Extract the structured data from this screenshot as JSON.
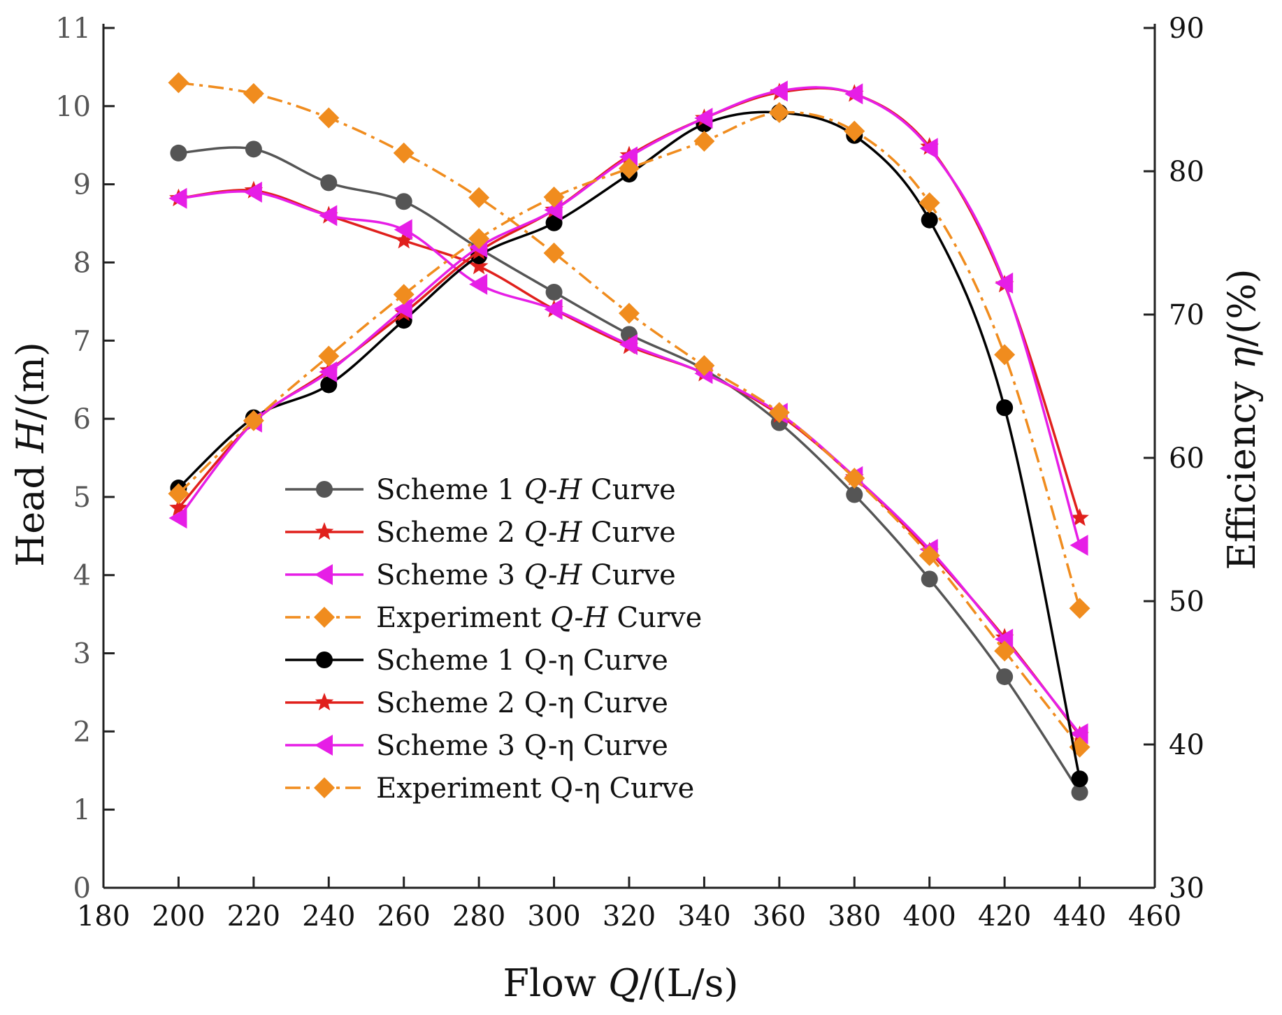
{
  "chart_data": {
    "type": "line",
    "x": [
      200,
      220,
      240,
      260,
      280,
      300,
      320,
      340,
      360,
      380,
      400,
      420,
      440
    ],
    "xlabel": {
      "prefix": "Flow ",
      "symbol": "Q",
      "suffix": "/(L/s)"
    },
    "ylabel_left": {
      "prefix": "Head  ",
      "symbol": "H",
      "suffix": "/(m)"
    },
    "ylabel_right": {
      "prefix": "Efficiency ",
      "symbol": "η",
      "suffix": "/(%)"
    },
    "xlim": [
      180,
      460
    ],
    "ylim_left": [
      0,
      11
    ],
    "ylim_right": [
      30,
      90
    ],
    "xticks": [
      180,
      200,
      220,
      240,
      260,
      280,
      300,
      320,
      340,
      360,
      380,
      400,
      420,
      440,
      460
    ],
    "yticks_left": [
      0,
      1,
      2,
      3,
      4,
      5,
      6,
      7,
      8,
      9,
      10,
      11
    ],
    "yticks_right": [
      30,
      40,
      50,
      60,
      70,
      80,
      90
    ],
    "series": [
      {
        "name": "Scheme 1 Q-H Curve",
        "legend_parts": [
          "Scheme 1 ",
          "Q-H",
          " Curve"
        ],
        "axis": "left",
        "color": "#555555",
        "marker": "circle",
        "dash": "solid",
        "values": [
          9.4,
          9.45,
          9.02,
          8.78,
          8.18,
          7.62,
          7.08,
          6.63,
          5.95,
          5.03,
          3.95,
          2.7,
          1.22
        ]
      },
      {
        "name": "Scheme 2 Q-H Curve",
        "legend_parts": [
          "Scheme 2 ",
          "Q-H",
          " Curve"
        ],
        "axis": "left",
        "color": "#e0201c",
        "marker": "star",
        "dash": "solid",
        "values": [
          8.82,
          8.92,
          8.6,
          8.28,
          7.95,
          7.4,
          6.93,
          6.58,
          6.05,
          5.25,
          4.3,
          3.2,
          1.95
        ]
      },
      {
        "name": "Scheme 3 Q-H Curve",
        "legend_parts": [
          "Scheme 3 ",
          "Q-H",
          " Curve"
        ],
        "axis": "left",
        "color": "#e61ee6",
        "marker": "triangle-left",
        "dash": "solid",
        "values": [
          8.82,
          8.9,
          8.6,
          8.42,
          7.72,
          7.4,
          6.95,
          6.58,
          6.07,
          5.26,
          4.33,
          3.18,
          1.97
        ]
      },
      {
        "name": "Experiment Q-H Curve",
        "legend_parts": [
          "Experiment ",
          "Q-H",
          " Curve"
        ],
        "axis": "left",
        "color": "#f08c1e",
        "marker": "diamond",
        "dash": "dashdot",
        "values": [
          10.3,
          10.16,
          9.85,
          9.4,
          8.83,
          8.12,
          7.35,
          6.68,
          6.08,
          5.24,
          4.25,
          3.03,
          1.8
        ]
      },
      {
        "name": "Scheme 1 Q-η Curve",
        "legend_parts": [
          "Scheme 1 Q-η Curve",
          "",
          ""
        ],
        "axis": "right",
        "color": "#000000",
        "marker": "circle",
        "dash": "solid",
        "values": [
          57.9,
          62.8,
          65.1,
          69.6,
          74.1,
          76.4,
          79.8,
          83.3,
          84.1,
          82.5,
          76.6,
          63.5,
          37.6
        ]
      },
      {
        "name": "Scheme 2 Q-η Curve",
        "legend_parts": [
          "Scheme 2 Q-η Curve",
          "",
          ""
        ],
        "axis": "right",
        "color": "#e0201c",
        "marker": "star",
        "dash": "solid",
        "values": [
          56.5,
          62.5,
          66.1,
          70.1,
          74.4,
          77.3,
          81.1,
          83.7,
          85.5,
          85.4,
          81.7,
          72.1,
          55.8
        ]
      },
      {
        "name": "Scheme 3 Q-η Curve",
        "legend_parts": [
          "Scheme 3 Q-η Curve",
          "",
          ""
        ],
        "axis": "right",
        "color": "#e61ee6",
        "marker": "triangle-left",
        "dash": "solid",
        "values": [
          55.8,
          62.5,
          66.0,
          70.4,
          74.7,
          77.3,
          81.0,
          83.7,
          85.6,
          85.4,
          81.6,
          72.2,
          53.9
        ]
      },
      {
        "name": "Experiment Q-η Curve",
        "legend_parts": [
          "Experiment Q-η Curve",
          "",
          ""
        ],
        "axis": "right",
        "color": "#f08c1e",
        "marker": "diamond",
        "dash": "dashdot",
        "values": [
          57.5,
          62.6,
          67.1,
          71.4,
          75.3,
          78.2,
          80.2,
          82.1,
          84.1,
          82.8,
          77.8,
          67.2,
          49.5
        ]
      }
    ],
    "legend_position": "center-left",
    "grid": false
  }
}
